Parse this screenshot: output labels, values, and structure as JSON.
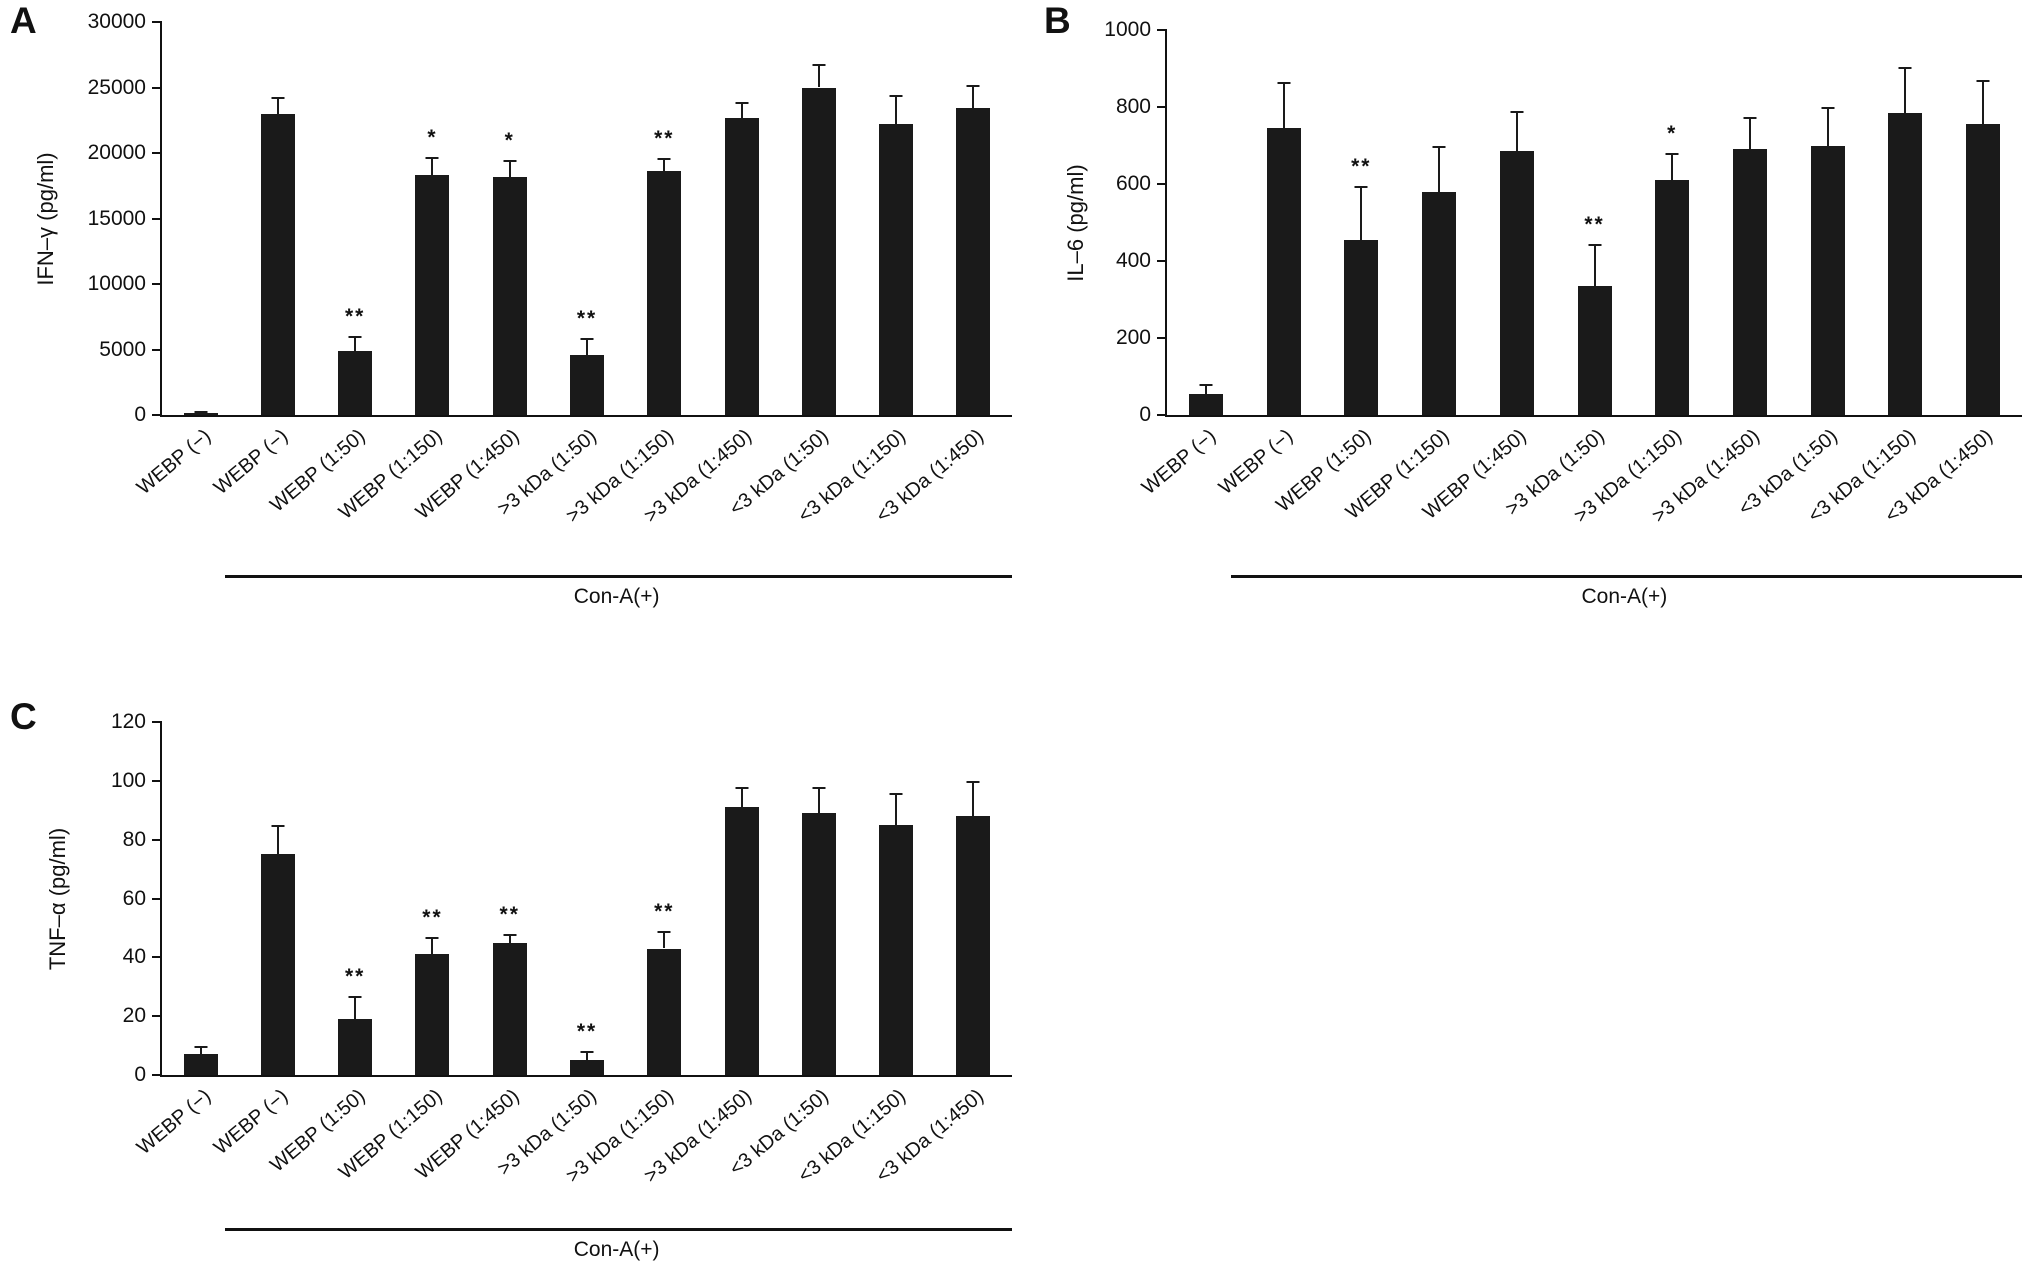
{
  "figure": {
    "background": "#ffffff",
    "bar_color": "#1a1a1a",
    "axis_color": "#111111"
  },
  "chart_data": [
    {
      "type": "bar",
      "panel": "A",
      "ylabel": "IFN–γ (pg/ml)",
      "xlabel": "",
      "ylim": [
        0,
        30000
      ],
      "yticks": [
        0,
        5000,
        10000,
        15000,
        20000,
        25000,
        30000
      ],
      "grid": false,
      "legend_position": "none",
      "categories": [
        "WEBP (−)",
        "WEBP (−)",
        "WEBP (1:50)",
        "WEBP (1:150)",
        "WEBP (1:450)",
        ">3 kDa (1:50)",
        ">3 kDa (1:150)",
        ">3 kDa (1:450)",
        "<3 kDa (1:50)",
        "<3 kDa (1:150)",
        "<3 kDa (1:450)"
      ],
      "values": [
        120,
        23000,
        4900,
        18300,
        18200,
        4600,
        18600,
        22700,
        25000,
        22200,
        23400
      ],
      "errors": [
        150,
        1300,
        1100,
        1400,
        1300,
        1300,
        1000,
        1200,
        1800,
        2200,
        1800
      ],
      "sig": [
        "",
        "",
        "**",
        "*",
        "*",
        "**",
        "**",
        "",
        "",
        "",
        ""
      ],
      "group_label": "Con-A(+)",
      "group_start": 1,
      "group_end": 10
    },
    {
      "type": "bar",
      "panel": "B",
      "ylabel": "IL–6 (pg/ml)",
      "xlabel": "",
      "ylim": [
        0,
        1000
      ],
      "yticks": [
        0,
        200,
        400,
        600,
        800,
        1000
      ],
      "grid": false,
      "legend_position": "none",
      "categories": [
        "WEBP (−)",
        "WEBP (−)",
        "WEBP (1:50)",
        "WEBP (1:150)",
        "WEBP (1:450)",
        ">3 kDa (1:50)",
        ">3 kDa (1:150)",
        ">3 kDa (1:450)",
        "<3 kDa (1:50)",
        "<3 kDa (1:150)",
        "<3 kDa (1:450)"
      ],
      "values": [
        55,
        745,
        455,
        580,
        685,
        335,
        610,
        690,
        700,
        785,
        755
      ],
      "errors": [
        25,
        120,
        140,
        120,
        105,
        110,
        70,
        85,
        100,
        120,
        115
      ],
      "sig": [
        "",
        "",
        "**",
        "",
        "",
        "**",
        "*",
        "",
        "",
        "",
        ""
      ],
      "group_label": "Con-A(+)",
      "group_start": 1,
      "group_end": 10
    },
    {
      "type": "bar",
      "panel": "C",
      "ylabel": "TNF–α (pg/ml)",
      "xlabel": "",
      "ylim": [
        0,
        120
      ],
      "yticks": [
        0,
        20,
        40,
        60,
        80,
        100,
        120
      ],
      "grid": false,
      "legend_position": "none",
      "categories": [
        "WEBP (−)",
        "WEBP (−)",
        "WEBP (1:50)",
        "WEBP (1:150)",
        "WEBP (1:450)",
        ">3 kDa (1:50)",
        ">3 kDa (1:150)",
        ">3 kDa (1:450)",
        "<3 kDa (1:50)",
        "<3 kDa (1:150)",
        "<3 kDa (1:450)"
      ],
      "values": [
        7,
        75,
        19,
        41,
        45,
        5,
        43,
        91,
        89,
        85,
        88
      ],
      "errors": [
        3,
        10,
        8,
        6,
        3,
        3,
        6,
        7,
        9,
        11,
        12
      ],
      "sig": [
        "",
        "",
        "**",
        "**",
        "**",
        "**",
        "**",
        "",
        "",
        "",
        ""
      ],
      "group_label": "Con-A(+)",
      "group_start": 1,
      "group_end": 10
    }
  ]
}
